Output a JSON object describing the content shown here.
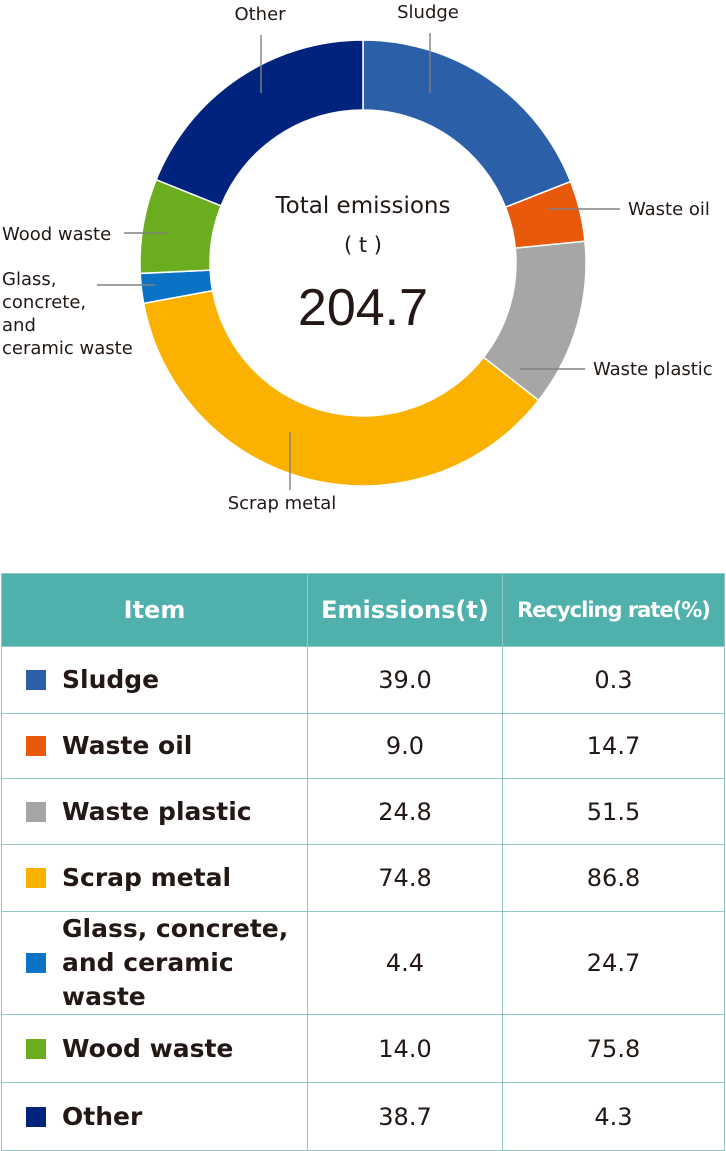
{
  "chart_data": {
    "type": "pie",
    "variant": "donut",
    "center": {
      "title": "Total emissions",
      "unit": "( t )",
      "total": "204.7"
    },
    "slices": [
      {
        "label": "Sludge",
        "value": 39.0,
        "color": "#2b5fa8"
      },
      {
        "label": "Waste oil",
        "value": 9.0,
        "color": "#e8590c"
      },
      {
        "label": "Waste plastic",
        "value": 24.8,
        "color": "#a6a6a6"
      },
      {
        "label": "Scrap metal",
        "value": 74.8,
        "color": "#fbb100"
      },
      {
        "label": "Glass,\nconcrete,\nand\nceramic waste",
        "value": 4.4,
        "color": "#0a73c5"
      },
      {
        "label": "Wood waste",
        "value": 14.0,
        "color": "#6aad1f"
      },
      {
        "label": "Other",
        "value": 38.7,
        "color": "#00247d"
      }
    ]
  },
  "table": {
    "headers": {
      "item": "Item",
      "emissions": "Emissions(t)",
      "rate": "Recycling rate(%)"
    },
    "rows": [
      {
        "item": "Sludge",
        "emissions": "39.0",
        "rate": "0.3",
        "color": "#2b5fa8"
      },
      {
        "item": "Waste oil",
        "emissions": "9.0",
        "rate": "14.7",
        "color": "#e8590c"
      },
      {
        "item": "Waste plastic",
        "emissions": "24.8",
        "rate": "51.5",
        "color": "#a6a6a6"
      },
      {
        "item": "Scrap metal",
        "emissions": "74.8",
        "rate": "86.8",
        "color": "#fbb100"
      },
      {
        "item": "Glass, concrete,\nand ceramic waste",
        "emissions": "4.4",
        "rate": "24.7",
        "color": "#0a73c5"
      },
      {
        "item": "Wood waste",
        "emissions": "14.0",
        "rate": "75.8",
        "color": "#6aad1f"
      },
      {
        "item": "Other",
        "emissions": "38.7",
        "rate": "4.3",
        "color": "#00247d"
      }
    ]
  }
}
